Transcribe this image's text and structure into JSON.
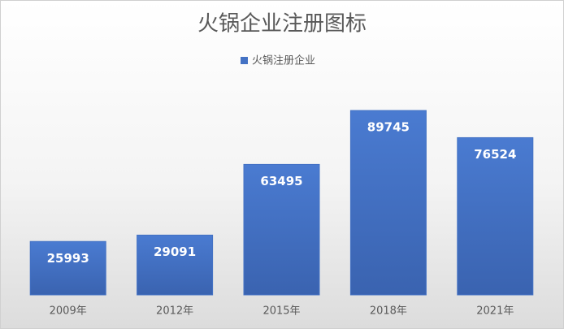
{
  "chart_data": {
    "type": "bar",
    "title": "火锅企业注册图标",
    "categories": [
      "2009年",
      "2012年",
      "2015年",
      "2018年",
      "2021年"
    ],
    "series": [
      {
        "name": "火锅注册企业",
        "color": "#4472c4",
        "values": [
          25993,
          29091,
          63495,
          89745,
          76524
        ]
      }
    ],
    "legend": "top",
    "grid": false
  }
}
